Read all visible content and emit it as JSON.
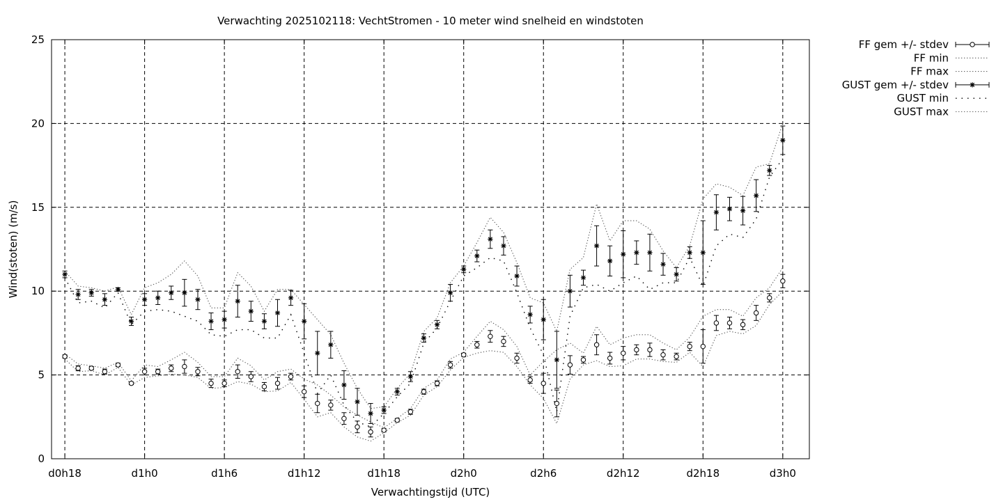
{
  "chart_data": {
    "type": "line",
    "title": "Verwachting 2025102118: VechtStromen - 10 meter wind snelheid en windstoten",
    "xlabel": "Verwachtingstijd (UTC)",
    "ylabel": "Wind(stoten) (m/s)",
    "xlim": [
      -1,
      56
    ],
    "ylim": [
      0,
      25
    ],
    "x_ticks": [
      {
        "x": 0,
        "label": "d0h18"
      },
      {
        "x": 6,
        "label": "d1h0"
      },
      {
        "x": 12,
        "label": "d1h6"
      },
      {
        "x": 18,
        "label": "d1h12"
      },
      {
        "x": 24,
        "label": "d1h18"
      },
      {
        "x": 30,
        "label": "d2h0"
      },
      {
        "x": 36,
        "label": "d2h6"
      },
      {
        "x": 42,
        "label": "d2h12"
      },
      {
        "x": 48,
        "label": "d2h18"
      },
      {
        "x": 54,
        "label": "d3h0"
      }
    ],
    "y_ticks": [
      0,
      5,
      10,
      15,
      20,
      25
    ],
    "grid": true,
    "legend_position": "outside-right",
    "x_hours": [
      0,
      1,
      2,
      3,
      4,
      5,
      6,
      7,
      8,
      9,
      10,
      11,
      12,
      13,
      14,
      15,
      16,
      17,
      18,
      19,
      20,
      21,
      22,
      23,
      24,
      25,
      26,
      27,
      28,
      29,
      30,
      31,
      32,
      33,
      34,
      35,
      36,
      37,
      38,
      39,
      40,
      41,
      42,
      43,
      44,
      45,
      46,
      47,
      48,
      49,
      50,
      51,
      52,
      53,
      54
    ],
    "series": [
      {
        "name": "FF gem +/- stdev",
        "marker": "circle",
        "style": "errorbar",
        "mean": [
          6.1,
          5.4,
          5.4,
          5.2,
          5.6,
          4.5,
          5.2,
          5.2,
          5.4,
          5.5,
          5.2,
          4.5,
          4.5,
          5.2,
          4.9,
          4.3,
          4.5,
          4.9,
          4.0,
          3.3,
          3.2,
          2.4,
          1.9,
          1.6,
          1.7,
          2.3,
          2.8,
          4.0,
          4.5,
          5.6,
          6.2,
          6.8,
          7.3,
          7.0,
          6.0,
          4.7,
          4.5,
          3.3,
          5.6,
          5.9,
          6.8,
          6.0,
          6.3,
          6.5,
          6.5,
          6.2,
          6.1,
          6.7,
          6.7,
          8.1,
          8.1,
          8.0,
          8.7,
          9.6,
          10.6
        ],
        "stdev": [
          0.1,
          0.15,
          0.1,
          0.15,
          0.1,
          0.08,
          0.2,
          0.15,
          0.2,
          0.4,
          0.25,
          0.25,
          0.2,
          0.4,
          0.3,
          0.25,
          0.35,
          0.2,
          0.35,
          0.55,
          0.3,
          0.35,
          0.35,
          0.3,
          0.1,
          0.1,
          0.15,
          0.15,
          0.15,
          0.2,
          0.1,
          0.2,
          0.35,
          0.3,
          0.3,
          0.2,
          0.6,
          0.8,
          0.55,
          0.2,
          0.6,
          0.35,
          0.4,
          0.3,
          0.4,
          0.3,
          0.2,
          0.25,
          1.0,
          0.45,
          0.35,
          0.3,
          0.45,
          0.25,
          0.4
        ]
      },
      {
        "name": "FF min",
        "style": "dotted",
        "values": [
          5.95,
          5.2,
          5.25,
          5.0,
          5.45,
          4.4,
          4.85,
          4.95,
          5.05,
          5.0,
          4.85,
          4.2,
          4.25,
          4.6,
          4.45,
          4.0,
          4.05,
          4.55,
          3.55,
          2.5,
          2.75,
          1.9,
          1.3,
          1.05,
          1.55,
          2.15,
          2.6,
          3.8,
          4.3,
          5.3,
          6.05,
          6.3,
          6.45,
          6.35,
          5.5,
          4.4,
          3.6,
          2.1,
          4.75,
          5.6,
          5.85,
          5.5,
          5.55,
          5.95,
          5.95,
          5.8,
          5.75,
          6.35,
          5.5,
          7.35,
          7.6,
          7.45,
          7.95,
          9.2,
          10.0
        ]
      },
      {
        "name": "FF max",
        "style": "dotted",
        "values": [
          6.25,
          5.65,
          5.55,
          5.4,
          5.75,
          4.65,
          5.6,
          5.5,
          5.9,
          6.35,
          5.75,
          4.9,
          4.9,
          6.0,
          5.55,
          4.7,
          5.2,
          5.35,
          4.75,
          4.4,
          3.8,
          3.1,
          2.6,
          2.2,
          1.85,
          2.4,
          3.0,
          4.2,
          4.7,
          5.95,
          6.35,
          7.3,
          8.2,
          7.7,
          6.7,
          5.0,
          5.8,
          6.5,
          6.9,
          6.3,
          7.9,
          6.8,
          7.2,
          7.4,
          7.4,
          6.9,
          6.5,
          7.25,
          8.5,
          8.9,
          8.9,
          8.5,
          9.6,
          10.2,
          11.4
        ]
      },
      {
        "name": "GUST gem +/- stdev",
        "marker": "star",
        "style": "errorbar",
        "mean": [
          11.0,
          9.8,
          9.9,
          9.5,
          10.1,
          8.2,
          9.5,
          9.6,
          9.9,
          9.9,
          9.5,
          8.2,
          8.3,
          9.4,
          8.8,
          8.2,
          8.7,
          9.6,
          8.2,
          6.3,
          6.8,
          4.4,
          3.4,
          2.7,
          2.9,
          4.0,
          4.9,
          7.2,
          8.0,
          9.9,
          11.3,
          12.1,
          13.1,
          12.7,
          10.9,
          8.6,
          8.3,
          5.9,
          10.0,
          10.8,
          12.7,
          11.8,
          12.2,
          12.3,
          12.3,
          11.6,
          11.0,
          12.3,
          12.3,
          14.7,
          14.9,
          14.8,
          15.7,
          17.2,
          19.0
        ],
        "stdev": [
          0.2,
          0.3,
          0.2,
          0.35,
          0.1,
          0.25,
          0.35,
          0.4,
          0.4,
          0.8,
          0.6,
          0.5,
          0.5,
          0.95,
          0.6,
          0.45,
          0.8,
          0.45,
          1.05,
          1.3,
          0.8,
          0.85,
          0.8,
          0.6,
          0.2,
          0.2,
          0.3,
          0.25,
          0.25,
          0.5,
          0.2,
          0.35,
          0.55,
          0.55,
          0.6,
          0.5,
          1.2,
          1.7,
          0.95,
          0.45,
          1.2,
          0.9,
          1.4,
          0.7,
          1.1,
          0.65,
          0.4,
          0.35,
          1.9,
          1.05,
          0.7,
          0.85,
          0.95,
          0.3,
          0.85
        ]
      },
      {
        "name": "GUST min",
        "style": "dotted",
        "values": [
          10.8,
          9.3,
          9.4,
          9.0,
          9.9,
          8.0,
          8.8,
          8.9,
          8.8,
          8.5,
          8.2,
          7.4,
          7.3,
          7.7,
          7.7,
          7.2,
          7.2,
          8.6,
          6.3,
          3.9,
          5.0,
          3.2,
          2.2,
          1.9,
          2.7,
          3.7,
          4.5,
          6.9,
          7.8,
          9.4,
          10.9,
          11.4,
          12.0,
          11.8,
          9.9,
          7.8,
          6.2,
          2.8,
          8.5,
          10.2,
          10.4,
          10.0,
          10.5,
          10.9,
          10.1,
          10.5,
          10.5,
          12.0,
          10.3,
          12.7,
          13.4,
          13.2,
          14.3,
          16.8,
          17.9
        ]
      },
      {
        "name": "GUST max",
        "style": "dotted",
        "values": [
          11.2,
          10.3,
          10.2,
          10.0,
          10.25,
          8.6,
          10.2,
          10.5,
          11.0,
          11.8,
          10.9,
          9.0,
          9.0,
          11.1,
          10.3,
          8.8,
          10.1,
          10.1,
          9.2,
          8.3,
          7.4,
          5.7,
          4.2,
          3.0,
          3.1,
          4.2,
          5.1,
          7.6,
          8.4,
          10.5,
          11.5,
          12.9,
          14.4,
          13.5,
          11.7,
          9.6,
          9.3,
          7.6,
          11.3,
          12.0,
          15.2,
          13.0,
          14.2,
          14.2,
          13.7,
          12.4,
          11.4,
          12.7,
          15.5,
          16.4,
          16.2,
          15.7,
          17.4,
          17.6,
          20.0
        ]
      }
    ]
  }
}
